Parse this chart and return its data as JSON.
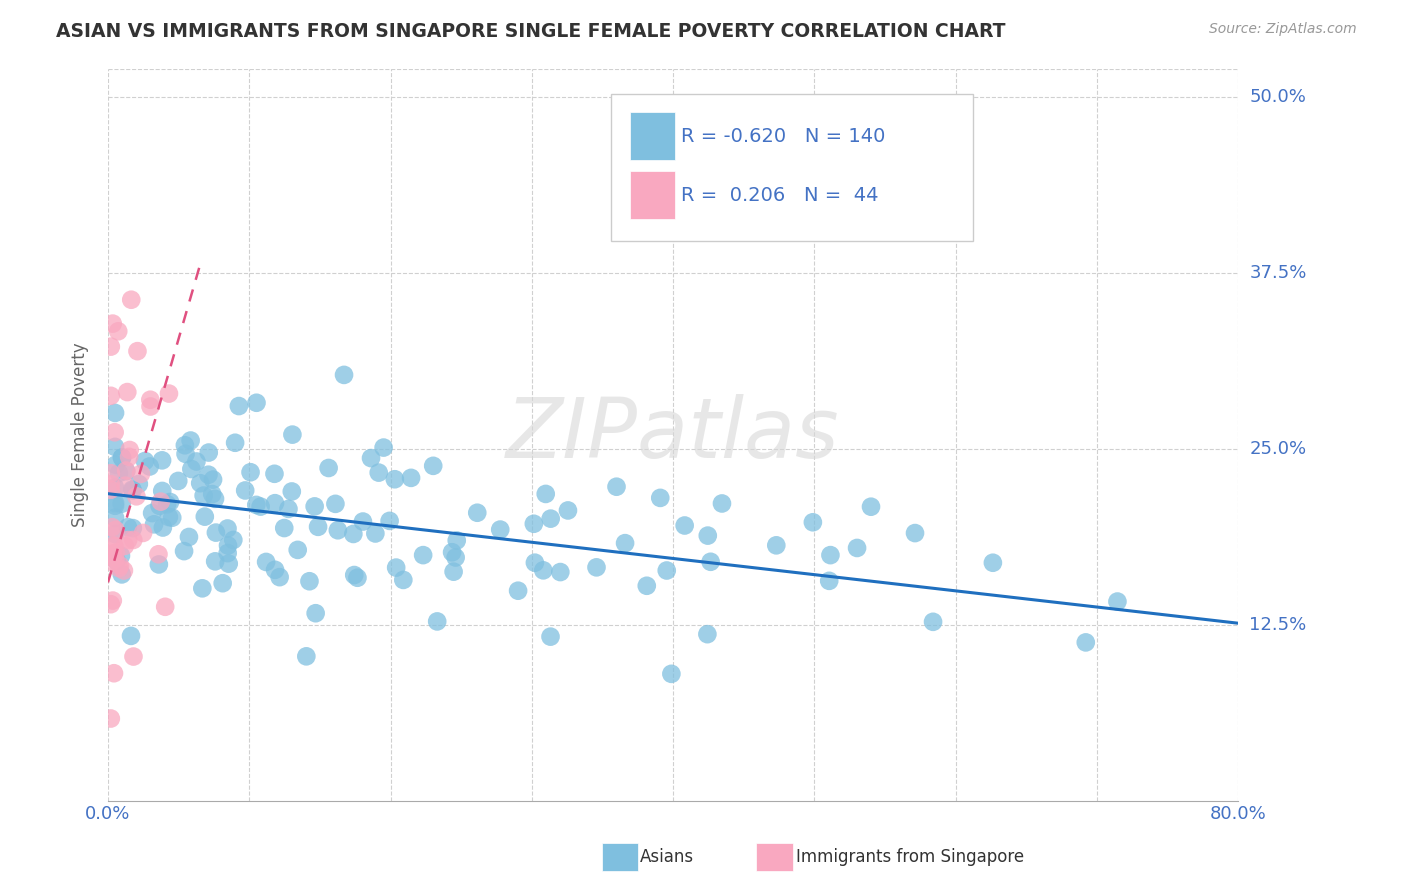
{
  "title": "ASIAN VS IMMIGRANTS FROM SINGAPORE SINGLE FEMALE POVERTY CORRELATION CHART",
  "source_text": "Source: ZipAtlas.com",
  "ylabel": "Single Female Poverty",
  "xlim": [
    0.0,
    0.8
  ],
  "ylim": [
    0.0,
    0.52
  ],
  "xticks": [
    0.0,
    0.1,
    0.2,
    0.3,
    0.4,
    0.5,
    0.6,
    0.7,
    0.8
  ],
  "ytick_positions": [
    0.125,
    0.25,
    0.375,
    0.5
  ],
  "ytick_labels": [
    "12.5%",
    "25.0%",
    "37.5%",
    "50.0%"
  ],
  "watermark": "ZIPatlas",
  "legend_R1": "-0.620",
  "legend_N1": "140",
  "legend_R2": "0.206",
  "legend_N2": "44",
  "blue_color": "#7fbfdf",
  "blue_line_color": "#1f6fbf",
  "pink_color": "#f9a8c0",
  "pink_line_color": "#e05080",
  "grid_color": "#d0d0d0",
  "title_color": "#333333",
  "axis_label_color": "#4472C4",
  "blue_line_x0": 0.0,
  "blue_line_x1": 0.8,
  "blue_line_y0": 0.218,
  "blue_line_y1": 0.126,
  "pink_line_x0": 0.0,
  "pink_line_x1": 0.065,
  "pink_line_y0": 0.155,
  "pink_line_y1": 0.38
}
